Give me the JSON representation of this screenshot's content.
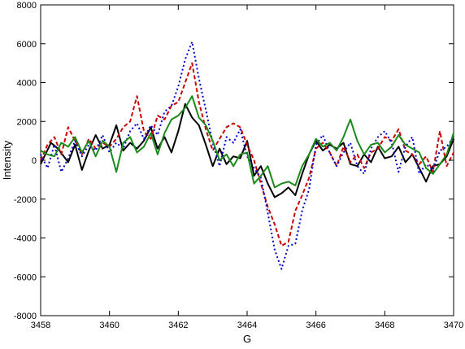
{
  "chart_data": {
    "type": "line",
    "title": "",
    "xlabel": "G",
    "ylabel": "Intensity",
    "xlim": [
      3458,
      3470
    ],
    "ylim": [
      -8000,
      8000
    ],
    "xticks": [
      3458,
      3460,
      3462,
      3464,
      3466,
      3468,
      3470
    ],
    "yticks": [
      -8000,
      -6000,
      -4000,
      -2000,
      0,
      2000,
      4000,
      6000,
      8000
    ],
    "grid": false,
    "legend": "none",
    "series": [
      {
        "color": "#000000",
        "dash": "solid",
        "x": [
          3458.0,
          3458.3,
          3458.5,
          3458.8,
          3459.0,
          3459.2,
          3459.4,
          3459.6,
          3459.8,
          3460.0,
          3460.2,
          3460.4,
          3460.6,
          3460.8,
          3461.0,
          3461.2,
          3461.4,
          3461.6,
          3461.8,
          3462.0,
          3462.2,
          3462.4,
          3462.6,
          3462.8,
          3463.0,
          3463.2,
          3463.4,
          3463.6,
          3463.8,
          3464.0,
          3464.2,
          3464.4,
          3464.6,
          3464.8,
          3465.0,
          3465.2,
          3465.4,
          3465.6,
          3465.8,
          3466.0,
          3466.2,
          3466.4,
          3466.6,
          3466.8,
          3467.0,
          3467.2,
          3467.4,
          3467.6,
          3467.8,
          3468.0,
          3468.2,
          3468.4,
          3468.6,
          3468.8,
          3469.0,
          3469.2,
          3469.4,
          3469.6,
          3469.8,
          3470.0
        ],
        "y": [
          -200,
          900,
          600,
          -100,
          800,
          -500,
          500,
          1300,
          600,
          800,
          1800,
          500,
          900,
          600,
          1000,
          1700,
          600,
          1200,
          400,
          1500,
          2900,
          2200,
          1800,
          800,
          -300,
          600,
          -200,
          200,
          100,
          1000,
          -800,
          -300,
          -1200,
          -1900,
          -1700,
          -1400,
          -1800,
          -700,
          300,
          1000,
          500,
          800,
          600,
          900,
          -200,
          -300,
          300,
          -100,
          700,
          100,
          200,
          700,
          -100,
          300,
          -400,
          -1100,
          -300,
          -200,
          200,
          1100
        ]
      },
      {
        "color": "#cc0000",
        "dash": "dashed",
        "x": [
          3458.0,
          3458.2,
          3458.4,
          3458.6,
          3458.8,
          3459.0,
          3459.2,
          3459.4,
          3459.6,
          3459.8,
          3460.0,
          3460.2,
          3460.4,
          3460.6,
          3460.8,
          3461.0,
          3461.2,
          3461.4,
          3461.6,
          3461.8,
          3462.0,
          3462.2,
          3462.4,
          3462.6,
          3462.8,
          3463.0,
          3463.2,
          3463.4,
          3463.6,
          3463.8,
          3464.0,
          3464.2,
          3464.4,
          3464.6,
          3464.8,
          3465.0,
          3465.2,
          3465.4,
          3465.6,
          3465.8,
          3466.0,
          3466.2,
          3466.4,
          3466.6,
          3466.8,
          3467.0,
          3467.2,
          3467.4,
          3467.6,
          3467.8,
          3468.0,
          3468.2,
          3468.4,
          3468.6,
          3468.8,
          3469.0,
          3469.2,
          3469.4,
          3469.6,
          3469.8,
          3470.0
        ],
        "y": [
          0,
          800,
          1200,
          300,
          1700,
          1000,
          300,
          1100,
          600,
          900,
          700,
          1100,
          1700,
          2000,
          3300,
          1500,
          1100,
          2300,
          2100,
          2800,
          3000,
          4000,
          5000,
          3000,
          1600,
          500,
          1100,
          1700,
          1900,
          1700,
          800,
          0,
          -1200,
          -2400,
          -3300,
          -4400,
          -4200,
          -2600,
          -1800,
          -900,
          600,
          900,
          400,
          -300,
          700,
          -100,
          300,
          -400,
          400,
          600,
          1200,
          1000,
          1600,
          500,
          300,
          -200,
          200,
          -600,
          1500,
          -300,
          400
        ]
      },
      {
        "color": "#0000cc",
        "dash": "dotted",
        "x": [
          3458.0,
          3458.2,
          3458.4,
          3458.6,
          3458.8,
          3459.0,
          3459.2,
          3459.4,
          3459.6,
          3459.8,
          3460.0,
          3460.2,
          3460.4,
          3460.6,
          3460.8,
          3461.0,
          3461.2,
          3461.4,
          3461.6,
          3461.8,
          3462.0,
          3462.2,
          3462.4,
          3462.6,
          3462.8,
          3463.0,
          3463.2,
          3463.4,
          3463.6,
          3463.8,
          3464.0,
          3464.2,
          3464.4,
          3464.6,
          3464.8,
          3465.0,
          3465.2,
          3465.4,
          3465.6,
          3465.8,
          3466.0,
          3466.2,
          3466.4,
          3466.6,
          3466.8,
          3467.0,
          3467.2,
          3467.4,
          3467.6,
          3467.8,
          3468.0,
          3468.2,
          3468.4,
          3468.6,
          3468.8,
          3469.0,
          3469.2,
          3469.4,
          3469.6,
          3469.8,
          3470.0
        ],
        "y": [
          300,
          -400,
          800,
          -600,
          100,
          1000,
          200,
          800,
          500,
          1300,
          400,
          900,
          600,
          1500,
          1900,
          1100,
          1800,
          1300,
          2500,
          2800,
          3800,
          5200,
          6100,
          4200,
          2600,
          900,
          -300,
          1200,
          900,
          1600,
          200,
          -400,
          -900,
          -2700,
          -4600,
          -5600,
          -4400,
          -4300,
          -2600,
          -1500,
          800,
          1300,
          400,
          -300,
          400,
          900,
          -300,
          -700,
          600,
          1200,
          1500,
          900,
          -600,
          700,
          1200,
          -700,
          -200,
          -500,
          500,
          700,
          1200
        ]
      },
      {
        "color": "#1a8a1a",
        "dash": "solid",
        "x": [
          3458.0,
          3458.2,
          3458.4,
          3458.6,
          3458.8,
          3459.0,
          3459.2,
          3459.4,
          3459.6,
          3459.8,
          3460.0,
          3460.2,
          3460.4,
          3460.6,
          3460.8,
          3461.0,
          3461.2,
          3461.4,
          3461.6,
          3461.8,
          3462.0,
          3462.2,
          3462.4,
          3462.6,
          3462.8,
          3463.0,
          3463.2,
          3463.4,
          3463.6,
          3463.8,
          3464.0,
          3464.2,
          3464.4,
          3464.6,
          3464.8,
          3465.0,
          3465.2,
          3465.4,
          3465.6,
          3465.8,
          3466.0,
          3466.2,
          3466.4,
          3466.6,
          3466.8,
          3467.0,
          3467.2,
          3467.4,
          3467.6,
          3467.8,
          3468.0,
          3468.2,
          3468.4,
          3468.6,
          3468.8,
          3469.0,
          3469.2,
          3469.4,
          3469.6,
          3469.8,
          3470.0
        ],
        "y": [
          500,
          300,
          200,
          900,
          700,
          1200,
          400,
          1000,
          200,
          1000,
          700,
          -600,
          900,
          1200,
          400,
          700,
          1400,
          300,
          1400,
          2100,
          2300,
          2700,
          3300,
          2200,
          1800,
          1000,
          0,
          300,
          -300,
          300,
          400,
          -1200,
          -800,
          -300,
          -1400,
          -1200,
          -1100,
          -1300,
          -300,
          300,
          1100,
          700,
          900,
          500,
          1200,
          2100,
          1000,
          300,
          800,
          900,
          400,
          700,
          1300,
          800,
          600,
          400,
          -400,
          -700,
          -200,
          300,
          1400
        ]
      }
    ]
  }
}
